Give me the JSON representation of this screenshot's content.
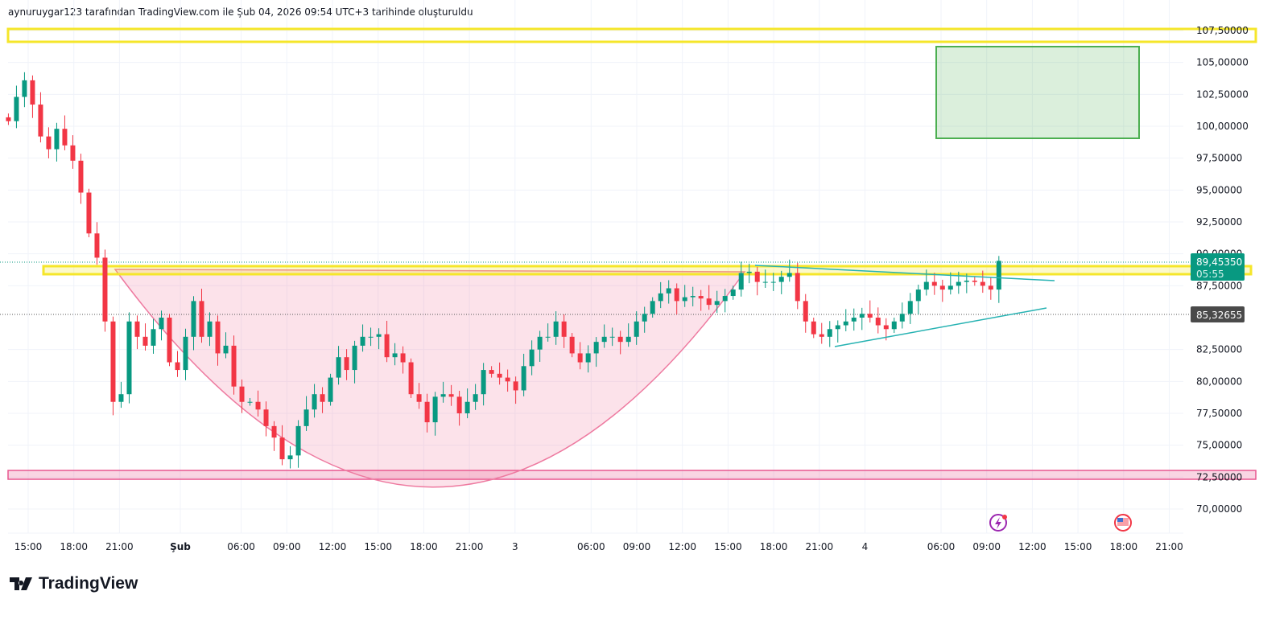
{
  "header": {
    "caption": "aynuruygar123 tarafından TradingView.com ile Şub 04, 2026 09:54 UTC+3 tarihinde oluşturuldu"
  },
  "logo": {
    "text": "TradingView"
  },
  "colors": {
    "up": "#089981",
    "down": "#f23645",
    "grid": "#f0f3fa",
    "yellow": "#f5e62a",
    "pink": "#e8578f",
    "teal": "#26b2b2",
    "green_zone": "#4caf50"
  },
  "chart_data": {
    "type": "candlestick",
    "title": "",
    "ylim": [
      68.5,
      108.2
    ],
    "bar_index_range": [
      -1.3,
      63.8
    ],
    "closes": [
      100.4,
      102.3,
      103.6,
      101.7,
      99.2,
      98.2,
      99.8,
      98.5,
      97.3,
      94.8,
      91.6,
      89.7,
      84.7,
      78.4,
      79.0,
      84.7,
      83.5,
      82.8,
      84.1,
      85.0,
      81.5,
      80.9,
      83.5,
      86.3,
      83.5,
      84.7,
      82.2,
      82.8,
      79.6,
      78.4,
      78.4,
      77.8,
      76.5,
      75.6,
      73.9,
      74.2,
      76.5,
      77.8,
      79.0,
      78.4,
      80.3,
      81.9,
      80.9,
      82.8,
      83.5,
      83.5,
      83.7,
      81.9,
      82.2,
      81.5,
      79.0,
      78.4,
      76.8,
      78.8,
      79.0,
      78.8,
      77.5,
      78.4,
      79.0,
      80.9,
      80.6,
      80.3,
      80.0,
      79.3,
      81.2,
      82.5,
      83.5,
      83.5,
      84.7,
      83.5,
      82.2,
      81.5,
      82.2,
      83.1,
      83.5,
      83.5,
      83.1,
      83.5,
      84.7,
      85.3,
      86.3,
      86.9,
      87.3,
      86.3,
      86.6,
      86.7,
      86.5,
      86.0,
      86.3,
      86.7,
      87.2,
      88.5,
      88.6,
      87.8,
      87.8,
      87.8,
      88.2,
      88.5,
      86.3,
      84.7,
      83.7,
      83.5,
      84.1,
      84.4,
      84.7,
      85.0,
      85.3,
      85.0,
      84.4,
      84.1,
      84.7,
      85.3,
      86.3,
      87.2,
      87.8,
      87.5,
      87.2,
      87.5,
      87.8,
      87.9,
      87.8,
      87.5,
      87.2,
      89.45
    ],
    "y_ticks": [
      "107,50000",
      "105,00000",
      "102,50000",
      "100,00000",
      "97,50000",
      "95,00000",
      "92,50000",
      "90,00000",
      "87,50000",
      "82,50000",
      "80,00000",
      "77,50000",
      "75,00000",
      "72,50000",
      "70,00000"
    ],
    "y_tick_values": [
      107.5,
      105,
      102.5,
      100,
      97.5,
      95,
      92.5,
      90,
      87.5,
      82.5,
      80,
      77.5,
      75,
      72.5,
      70
    ],
    "x_ticks": [
      {
        "label": "15:00",
        "index": 0
      },
      {
        "label": "18:00",
        "index": 3
      },
      {
        "label": "21:00",
        "index": 6
      },
      {
        "label": "Şub",
        "index": 10,
        "bold": true
      },
      {
        "label": "06:00",
        "index": 14
      },
      {
        "label": "09:00",
        "index": 17
      },
      {
        "label": "12:00",
        "index": 20
      },
      {
        "label": "15:00",
        "index": 23
      },
      {
        "label": "18:00",
        "index": 26
      },
      {
        "label": "21:00",
        "index": 29
      },
      {
        "label": "3",
        "index": 32
      },
      {
        "label": "06:00",
        "index": 37
      },
      {
        "label": "09:00",
        "index": 40
      },
      {
        "label": "12:00",
        "index": 43
      },
      {
        "label": "15:00",
        "index": 46
      },
      {
        "label": "18:00",
        "index": 49
      },
      {
        "label": "21:00",
        "index": 52
      },
      {
        "label": "4",
        "index": 55
      },
      {
        "label": "06:00",
        "index": 60
      },
      {
        "label": "09:00",
        "index": 63
      },
      {
        "label": "12:00",
        "index": 66
      },
      {
        "label": "15:00",
        "index": 69
      },
      {
        "label": "18:00",
        "index": 72
      },
      {
        "label": "21:00",
        "index": 75
      }
    ],
    "last_price": {
      "value": "89,45350",
      "countdown": "05:55"
    },
    "marked_price": {
      "value": "85,32655"
    }
  }
}
